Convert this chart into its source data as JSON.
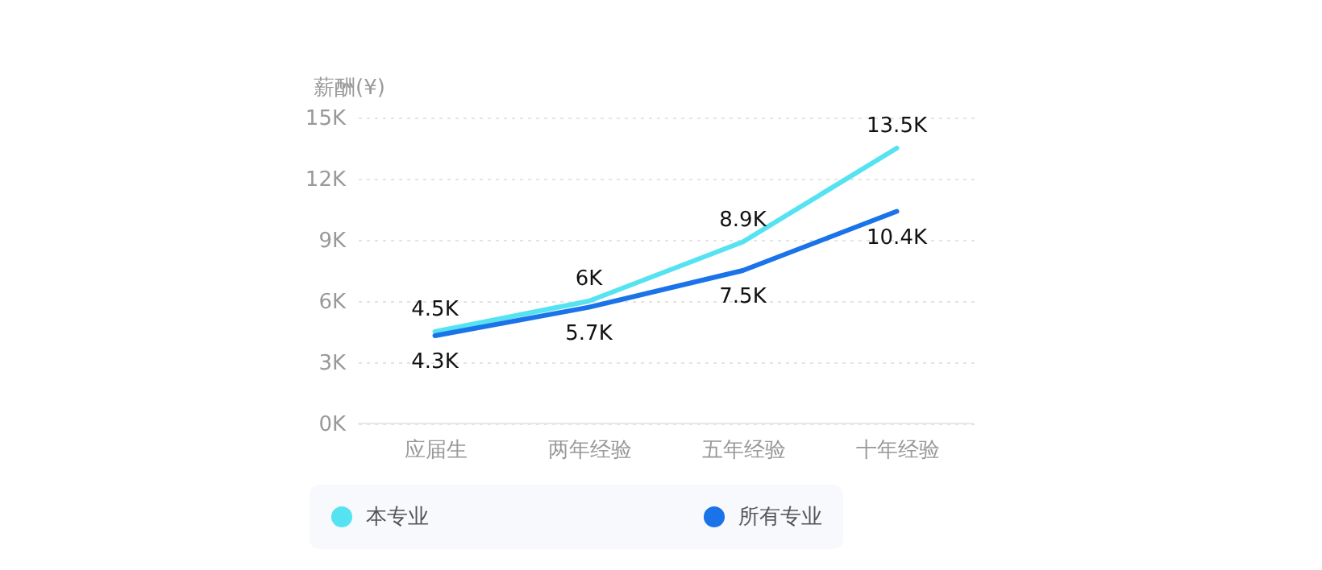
{
  "chart_data": {
    "type": "line",
    "ylabel": "薪酬(¥)",
    "categories": [
      "应届生",
      "两年经验",
      "五年经验",
      "十年经验"
    ],
    "series": [
      {
        "name": "本专业",
        "color": "#55e3f2",
        "values": [
          4500,
          6000,
          8900,
          13500
        ],
        "value_labels": [
          "4.5K",
          "6K",
          "8.9K",
          "13.5K"
        ]
      },
      {
        "name": "所有专业",
        "color": "#1a73e8",
        "values": [
          4300,
          5700,
          7500,
          10400
        ],
        "value_labels": [
          "4.3K",
          "5.7K",
          "7.5K",
          "10.4K"
        ]
      }
    ],
    "ylim": [
      0,
      15000
    ],
    "yticks": [
      {
        "value": 0,
        "label": "0K"
      },
      {
        "value": 3000,
        "label": "3K"
      },
      {
        "value": 6000,
        "label": "6K"
      },
      {
        "value": 9000,
        "label": "9K"
      },
      {
        "value": 12000,
        "label": "12K"
      },
      {
        "value": 15000,
        "label": "15K"
      }
    ],
    "grid": "y",
    "legend": "bottom",
    "marker": "none",
    "line_style": "solid"
  }
}
